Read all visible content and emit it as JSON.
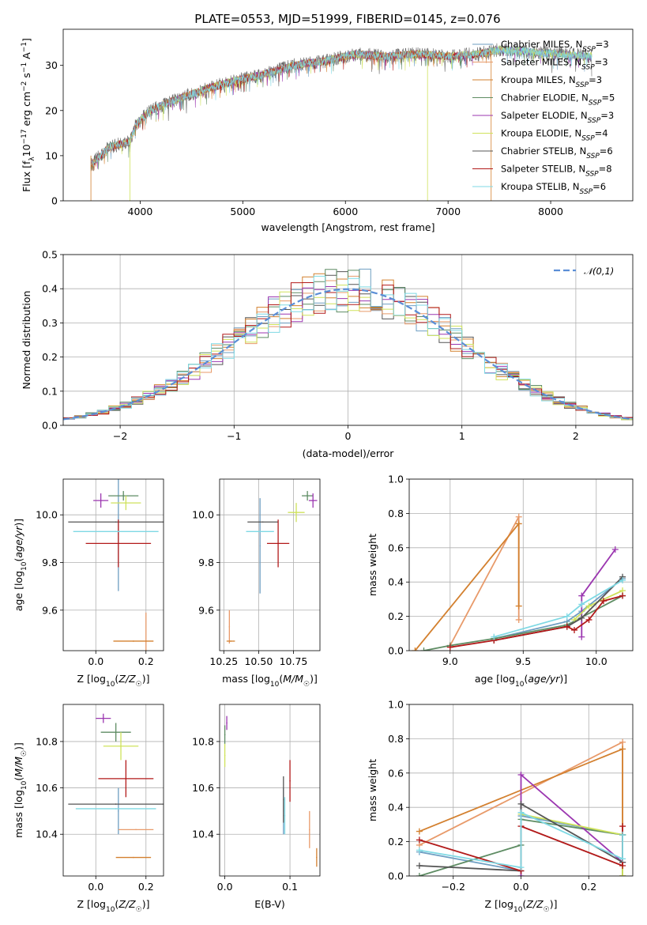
{
  "chart_data": {
    "type": "line",
    "title": "PLATE=0553, MJD=51999, FIBERID=0145, z=0.076",
    "models": [
      {
        "label": "Chabrier MILES, N_SSP=3",
        "color": "#6e9ec2"
      },
      {
        "label": "Salpeter MILES, N_SSP=3",
        "color": "#e89a6a"
      },
      {
        "label": "Kroupa MILES, N_SSP=3",
        "color": "#d3802f"
      },
      {
        "label": "Chabrier ELODIE, N_SSP=5",
        "color": "#5e8c63"
      },
      {
        "label": "Salpeter ELODIE, N_SSP=3",
        "color": "#9b36b0"
      },
      {
        "label": "Kroupa ELODIE, N_SSP=4",
        "color": "#cfe25b"
      },
      {
        "label": "Chabrier STELIB, N_SSP=6",
        "color": "#555555"
      },
      {
        "label": "Salpeter STELIB, N_SSP=8",
        "color": "#b21a1a"
      },
      {
        "label": "Kroupa STELIB, N_SSP=6",
        "color": "#7fd9e4"
      }
    ],
    "panels": {
      "spectrum": {
        "xlabel": "wavelength [Angstrom, rest frame]",
        "ylabel": "Flux [f_λ 10^-17 erg cm^-2 s^-1 A^-1]",
        "xlim": [
          3250,
          8800
        ],
        "ylim": [
          0,
          38
        ],
        "xticks": [
          4000,
          5000,
          6000,
          7000,
          8000
        ],
        "yticks": [
          0,
          10,
          20,
          30
        ],
        "continuum_points": [
          [
            3520,
            8
          ],
          [
            3700,
            12
          ],
          [
            3900,
            13
          ],
          [
            3960,
            17
          ],
          [
            4100,
            20
          ],
          [
            4300,
            22
          ],
          [
            4600,
            24.5
          ],
          [
            4900,
            26.5
          ],
          [
            5200,
            28
          ],
          [
            5500,
            30
          ],
          [
            5800,
            31
          ],
          [
            6100,
            32.5
          ],
          [
            6400,
            32
          ],
          [
            6700,
            32.5
          ],
          [
            7000,
            32
          ],
          [
            7300,
            32.5
          ],
          [
            7500,
            33.5
          ],
          [
            7800,
            33
          ],
          [
            8100,
            32.5
          ],
          [
            8400,
            32
          ]
        ]
      },
      "residuals": {
        "xlabel": "(data-model)/error",
        "ylabel": "Normed distribution",
        "xlim": [
          -2.5,
          2.5
        ],
        "ylim": [
          0,
          0.5
        ],
        "xticks": [
          -2,
          -1,
          0,
          1,
          2
        ],
        "yticks": [
          0.0,
          0.1,
          0.2,
          0.3,
          0.4,
          0.5
        ],
        "gaussian_label": "𝒩(0,1)",
        "gaussian_color": "#5b8ed6"
      },
      "Z_vs_age": {
        "xlabel": "Z [log10(Z/Z☉)]",
        "ylabel": "age [log10(age/yr)]",
        "xlim": [
          -0.13,
          0.27
        ],
        "ylim": [
          9.43,
          10.15
        ],
        "xticks": [
          0.0,
          0.2
        ],
        "yticks": [
          9.6,
          9.8,
          10.0
        ],
        "points": [
          {
            "m": 0,
            "x": 0.09,
            "y": 9.92,
            "dx": 0.0,
            "dy": 0.24
          },
          {
            "m": 1,
            "x": 0.2,
            "y": 9.47,
            "dx": 0.0,
            "dy": 0.12
          },
          {
            "m": 2,
            "x": 0.15,
            "y": 9.47,
            "dx": 0.08,
            "dy": 0.0
          },
          {
            "m": 3,
            "x": 0.11,
            "y": 10.08,
            "dx": 0.06,
            "dy": 0.02
          },
          {
            "m": 4,
            "x": 0.02,
            "y": 10.06,
            "dx": 0.03,
            "dy": 0.03
          },
          {
            "m": 5,
            "x": 0.12,
            "y": 10.05,
            "dx": 0.06,
            "dy": 0.03
          },
          {
            "m": 6,
            "x": 0.08,
            "y": 9.97,
            "dx": 0.19,
            "dy": 0.0
          },
          {
            "m": 7,
            "x": 0.09,
            "y": 9.88,
            "dx": 0.13,
            "dy": 0.1
          },
          {
            "m": 8,
            "x": 0.08,
            "y": 9.93,
            "dx": 0.17,
            "dy": 0.0
          }
        ]
      },
      "mass_vs_age": {
        "xlabel": "mass [log10(M/M☉)]",
        "ylabel": "",
        "xlim": [
          10.22,
          10.94
        ],
        "ylim": [
          9.43,
          10.15
        ],
        "xticks": [
          10.25,
          10.5,
          10.75
        ],
        "yticks": [
          9.6,
          9.8,
          10.0
        ],
        "points": [
          {
            "m": 0,
            "x": 10.51,
            "y": 9.87,
            "dx": 0.0,
            "dy": 0.2
          },
          {
            "m": 1,
            "x": 10.29,
            "y": 9.53,
            "dx": 0.0,
            "dy": 0.07
          },
          {
            "m": 2,
            "x": 10.3,
            "y": 9.47,
            "dx": 0.03,
            "dy": 0.0
          },
          {
            "m": 3,
            "x": 10.85,
            "y": 10.08,
            "dx": 0.04,
            "dy": 0.02
          },
          {
            "m": 4,
            "x": 10.89,
            "y": 10.06,
            "dx": 0.03,
            "dy": 0.03
          },
          {
            "m": 5,
            "x": 10.77,
            "y": 10.01,
            "dx": 0.06,
            "dy": 0.04
          },
          {
            "m": 6,
            "x": 10.53,
            "y": 9.97,
            "dx": 0.11,
            "dy": 0.0
          },
          {
            "m": 7,
            "x": 10.64,
            "y": 9.88,
            "dx": 0.08,
            "dy": 0.1
          },
          {
            "m": 8,
            "x": 10.51,
            "y": 9.93,
            "dx": 0.1,
            "dy": 0.0
          }
        ]
      },
      "age_vs_weight": {
        "xlabel": "age [log10(age/yr)]",
        "ylabel": "mass weight",
        "xlim": [
          8.72,
          10.25
        ],
        "ylim": [
          0,
          1
        ],
        "xticks": [
          9.0,
          9.5,
          10.0
        ],
        "yticks": [
          0.0,
          0.2,
          0.4,
          0.6,
          0.8,
          1.0
        ],
        "series": [
          {
            "m": 0,
            "x": [
              9.3,
              9.8,
              9.9,
              10.18
            ],
            "y": [
              0.07,
              0.17,
              0.23,
              0.42
            ]
          },
          {
            "m": 1,
            "x": [
              9.0,
              9.47,
              9.47
            ],
            "y": [
              0.03,
              0.78,
              0.18
            ]
          },
          {
            "m": 2,
            "x": [
              8.76,
              9.47,
              9.47
            ],
            "y": [
              0.0,
              0.74,
              0.26
            ]
          },
          {
            "m": 3,
            "x": [
              8.82,
              9.0,
              9.3,
              9.8,
              10.18
            ],
            "y": [
              0.0,
              0.03,
              0.07,
              0.15,
              0.32
            ]
          },
          {
            "m": 4,
            "x": [
              9.9,
              9.9,
              10.13
            ],
            "y": [
              0.08,
              0.32,
              0.59
            ]
          },
          {
            "m": 5,
            "x": [
              9.85,
              9.95,
              10.18
            ],
            "y": [
              0.18,
              0.26,
              0.35
            ]
          },
          {
            "m": 6,
            "x": [
              9.3,
              9.8,
              9.9,
              10.18
            ],
            "y": [
              0.06,
              0.14,
              0.19,
              0.43
            ]
          },
          {
            "m": 7,
            "x": [
              9.0,
              9.3,
              9.8,
              9.85,
              9.95,
              10.05,
              10.18
            ],
            "y": [
              0.02,
              0.06,
              0.14,
              0.12,
              0.18,
              0.29,
              0.32
            ]
          },
          {
            "m": 8,
            "x": [
              9.3,
              9.8,
              9.9,
              10.18
            ],
            "y": [
              0.08,
              0.2,
              0.27,
              0.41
            ]
          }
        ]
      },
      "Z_vs_mass": {
        "xlabel": "Z [log10(Z/Z☉)]",
        "ylabel": "mass [log10(M/M☉)]",
        "xlim": [
          -0.13,
          0.27
        ],
        "ylim": [
          10.22,
          10.96
        ],
        "xticks": [
          0.0,
          0.2
        ],
        "yticks": [
          10.4,
          10.6,
          10.8
        ],
        "points": [
          {
            "m": 0,
            "x": 0.09,
            "y": 10.5,
            "dx": 0.0,
            "dy": 0.1
          },
          {
            "m": 1,
            "x": 0.16,
            "y": 10.42,
            "dx": 0.07,
            "dy": 0.0
          },
          {
            "m": 2,
            "x": 0.15,
            "y": 10.3,
            "dx": 0.07,
            "dy": 0.0
          },
          {
            "m": 3,
            "x": 0.08,
            "y": 10.84,
            "dx": 0.06,
            "dy": 0.04
          },
          {
            "m": 4,
            "x": 0.03,
            "y": 10.9,
            "dx": 0.03,
            "dy": 0.02
          },
          {
            "m": 5,
            "x": 0.1,
            "y": 10.78,
            "dx": 0.07,
            "dy": 0.06
          },
          {
            "m": 6,
            "x": 0.08,
            "y": 10.53,
            "dx": 0.19,
            "dy": 0.0
          },
          {
            "m": 7,
            "x": 0.12,
            "y": 10.64,
            "dx": 0.11,
            "dy": 0.08
          },
          {
            "m": 8,
            "x": 0.08,
            "y": 10.51,
            "dx": 0.16,
            "dy": 0.0
          }
        ]
      },
      "ebv_vs_mass": {
        "xlabel": "E(B-V)",
        "ylabel": "",
        "xlim": [
          -0.008,
          0.146
        ],
        "ylim": [
          10.22,
          10.96
        ],
        "xticks": [
          0.0,
          0.1
        ],
        "yticks": [
          10.4,
          10.6,
          10.8
        ],
        "points": [
          {
            "m": 0,
            "x": 0.09,
            "y": 10.5,
            "dy": 0.1
          },
          {
            "m": 1,
            "x": 0.13,
            "y": 10.42,
            "dy": 0.08
          },
          {
            "m": 2,
            "x": 0.141,
            "y": 10.3,
            "dy": 0.04
          },
          {
            "m": 3,
            "x": 0.0,
            "y": 10.83,
            "dy": 0.04
          },
          {
            "m": 4,
            "x": 0.003,
            "y": 10.88,
            "dy": 0.03
          },
          {
            "m": 5,
            "x": 0.0,
            "y": 10.74,
            "dy": 0.05
          },
          {
            "m": 6,
            "x": 0.09,
            "y": 10.55,
            "dy": 0.1
          },
          {
            "m": 7,
            "x": 0.1,
            "y": 10.63,
            "dy": 0.09
          },
          {
            "m": 8,
            "x": 0.092,
            "y": 10.48,
            "dy": 0.08
          }
        ]
      },
      "Z_vs_weight": {
        "xlabel": "Z [log10(Z/Z☉)]",
        "ylabel": "mass weight",
        "xlim": [
          -0.33,
          0.33
        ],
        "ylim": [
          0,
          1
        ],
        "xticks": [
          -0.2,
          0.0,
          0.2
        ],
        "yticks": [
          0.0,
          0.2,
          0.4,
          0.6,
          0.8,
          1.0
        ],
        "series": [
          {
            "m": 0,
            "x": [
              -0.3,
              0.0,
              0.0,
              0.3,
              0.3
            ],
            "y": [
              0.14,
              0.03,
              0.35,
              0.24,
              0.08
            ]
          },
          {
            "m": 1,
            "x": [
              -0.3,
              0.3,
              0.3
            ],
            "y": [
              0.18,
              0.78,
              0.0
            ]
          },
          {
            "m": 2,
            "x": [
              -0.3,
              0.3,
              0.3
            ],
            "y": [
              0.26,
              0.74,
              0.0
            ]
          },
          {
            "m": 3,
            "x": [
              -0.3,
              0.0,
              0.0,
              0.3,
              0.3
            ],
            "y": [
              0.0,
              0.18,
              0.33,
              0.24,
              0.0
            ]
          },
          {
            "m": 4,
            "x": [
              0.0,
              0.0,
              0.3
            ],
            "y": [
              0.0,
              0.59,
              0.08
            ]
          },
          {
            "m": 5,
            "x": [
              0.0,
              0.3,
              0.3
            ],
            "y": [
              0.36,
              0.24,
              0.0
            ]
          },
          {
            "m": 6,
            "x": [
              -0.3,
              0.0,
              0.0,
              0.3,
              0.3
            ],
            "y": [
              0.06,
              0.03,
              0.42,
              0.08,
              0.24
            ]
          },
          {
            "m": 7,
            "x": [
              -0.3,
              0.0,
              0.0,
              0.3,
              0.3
            ],
            "y": [
              0.21,
              0.03,
              0.29,
              0.06,
              0.29
            ]
          },
          {
            "m": 8,
            "x": [
              -0.3,
              0.0,
              0.0,
              0.3,
              0.3
            ],
            "y": [
              0.15,
              0.05,
              0.37,
              0.1,
              0.24
            ]
          }
        ]
      }
    }
  }
}
